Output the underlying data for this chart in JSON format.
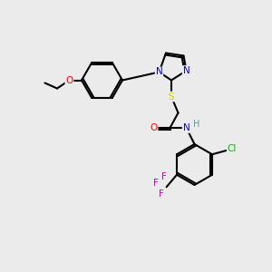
{
  "bg_color": "#ebebeb",
  "bond_color": "#000000",
  "atom_colors": {
    "N": "#0000ff",
    "O": "#ff0000",
    "S": "#cccc00",
    "F": "#cc00cc",
    "Cl": "#00bb00",
    "H": "#669999",
    "C": "#000000"
  },
  "figsize": [
    3.0,
    3.0
  ],
  "dpi": 100
}
